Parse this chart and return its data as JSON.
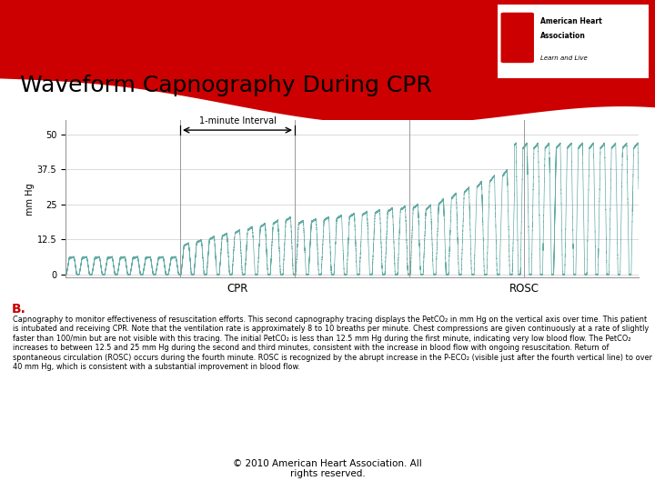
{
  "title": "Waveform Capnography During CPR",
  "title_fontsize": 18,
  "bg_color": "#ffffff",
  "red_color": "#cc0000",
  "wave_color": "#5ba8a0",
  "ylabel": "mm Hg",
  "yticks": [
    0,
    12.5,
    25,
    37.5,
    50
  ],
  "ylim": [
    -1,
    55
  ],
  "xlabel_cpr": "CPR",
  "xlabel_rosc": "ROSC",
  "interval_label": "1-minute Interval",
  "label_b": "B.",
  "copyright": "© 2010 American Heart Association. All\nrights reserved.",
  "body_text_bold": "Capnography to monitor effectiveness of resuscitation efforts.",
  "body_text_normal": " This second capnography tracing displays the PetCO₂ in mm Hg on the vertical axis over time. This patient is intubated and receiving CPR. Note that the ventilation rate is approximately 8 to 10 breaths per minute. Chest compressions are given continuously at a rate of slightly faster than 100/min but are not visible with this tracing. The initial PetCO₂ is less than 12.5 mm Hg during the first minute, indicating very low blood flow. The PetCO₂ increases to between 12.5 and 25 mm Hg during the second and third minutes, consistent with the increase in blood flow with ongoing resuscitation. Return of spontaneous circulation (ROSC) occurs during the fourth minute. ROSC is recognized by the abrupt increase in the P-ECO₂ (visible just after the fourth vertical line) to over 40 mm Hg, which is consistent with a substantial improvement in blood flow."
}
